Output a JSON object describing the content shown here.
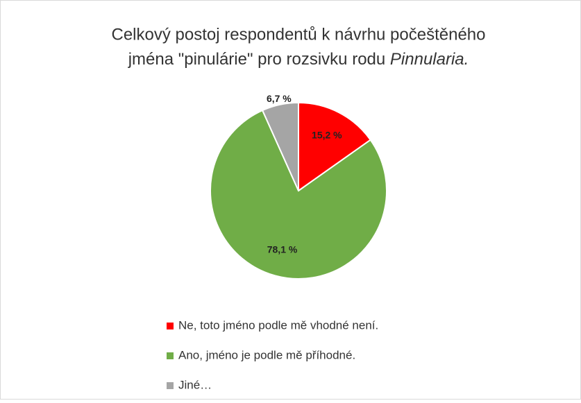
{
  "chart_data": {
    "type": "pie",
    "title": {
      "line1": "Celkový postoj respondentů k návrhu počeštěného",
      "line2": "jména \"pinulárie\" pro rozsivku rodu ",
      "italic": "Pinnularia."
    },
    "categories": [
      "Ne, toto jméno podle mě vhodné není.",
      "Ano, jméno je podle mě příhodné.",
      "Jiné…"
    ],
    "values": [
      15.2,
      78.1,
      6.7
    ],
    "value_labels": [
      "15,2 %",
      "78,1 %",
      "6,7 %"
    ],
    "colors": [
      "#ff0000",
      "#70ad47",
      "#a5a5a5"
    ],
    "legend": "bottom"
  }
}
